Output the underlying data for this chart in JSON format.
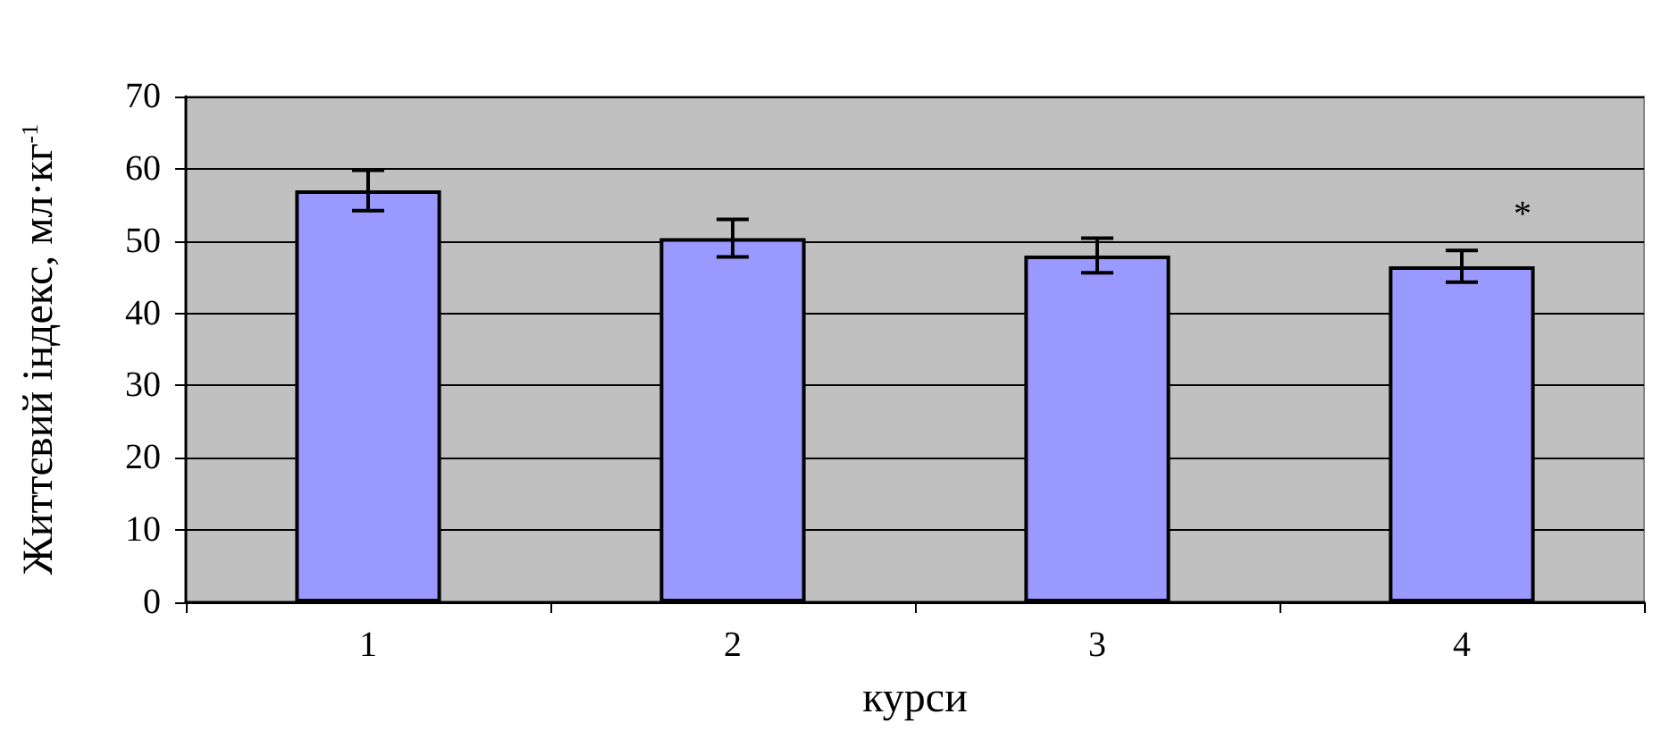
{
  "chart_data": {
    "type": "bar",
    "xlabel": "курси",
    "ylabel": "Життєвий індекс, мл·кг$^{-1}$",
    "categories": [
      "1",
      "2",
      "3",
      "4"
    ],
    "values": [
      57,
      50.4,
      48,
      46.5
    ],
    "errors": [
      2.8,
      2.6,
      2.4,
      2.2
    ],
    "color": "#9999ff",
    "ylim": [
      0,
      70
    ],
    "yticks": [
      0,
      10,
      20,
      30,
      40,
      50,
      60,
      70
    ],
    "grid": "y",
    "annotations": [
      "*"
    ]
  }
}
